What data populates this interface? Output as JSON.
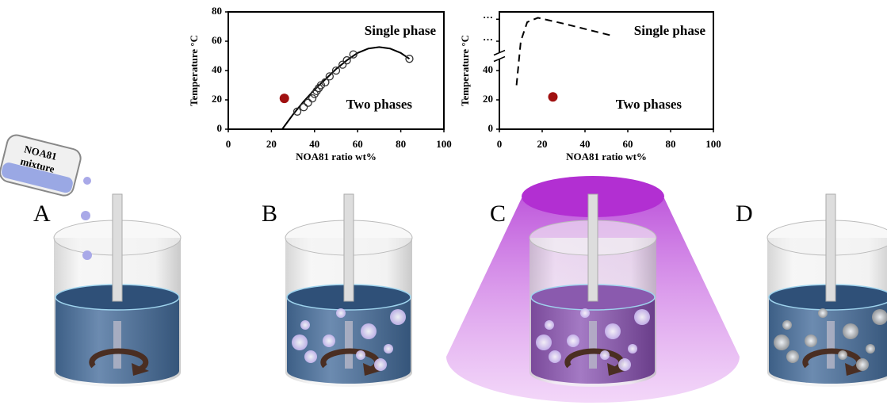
{
  "chart_data": [
    {
      "type": "scatter",
      "x_label": "NOA81 ratio wt%",
      "y_label": "Temperature °C",
      "xlim": [
        0,
        100
      ],
      "xticks": [
        0,
        20,
        40,
        60,
        80,
        100
      ],
      "ylim": [
        0,
        80
      ],
      "yticks": [
        0,
        20,
        40,
        60,
        80
      ],
      "points": {
        "x": [
          32,
          35,
          37,
          39,
          40,
          41,
          42,
          43,
          45,
          47,
          50,
          53,
          55,
          58,
          84
        ],
        "y": [
          12,
          15,
          18,
          21,
          24,
          26,
          28,
          30,
          32,
          36,
          40,
          44,
          47,
          51,
          48
        ],
        "color": "#333333"
      },
      "curve": {
        "x": [
          25,
          30,
          35,
          40,
          45,
          50,
          55,
          60,
          65,
          70,
          75,
          80,
          84
        ],
        "y": [
          0,
          10,
          19,
          27,
          34,
          41,
          47,
          52,
          55,
          56,
          55,
          52,
          48
        ],
        "color": "#000000",
        "dashed": false
      },
      "marker": {
        "x": 26,
        "y": 21,
        "color": "#a01010"
      },
      "annotations": [
        "Single phase",
        "Two phases"
      ]
    },
    {
      "type": "line",
      "x_label": "NOA81 ratio wt%",
      "y_label": "Temperature °C",
      "xlim": [
        0,
        100
      ],
      "xticks": [
        0,
        20,
        40,
        60,
        80,
        100
      ],
      "ylim": [
        0,
        80
      ],
      "yticks": [
        0,
        20,
        40,
        {
          "value": 60,
          "label": "…"
        },
        {
          "value": 75,
          "label": "…"
        }
      ],
      "axis_break": 50,
      "curve": {
        "x": [
          8,
          9,
          10,
          13,
          18,
          30,
          52
        ],
        "y": [
          30,
          45,
          60,
          73,
          76,
          72,
          64
        ],
        "color": "#000000",
        "dashed": true
      },
      "marker": {
        "x": 25,
        "y": 22,
        "color": "#a01010"
      },
      "annotations": [
        "Single phase",
        "Two phases"
      ]
    }
  ],
  "panel_labels": [
    "A",
    "B",
    "C",
    "D"
  ],
  "bottle_label": [
    "NOA81",
    "mixture"
  ]
}
